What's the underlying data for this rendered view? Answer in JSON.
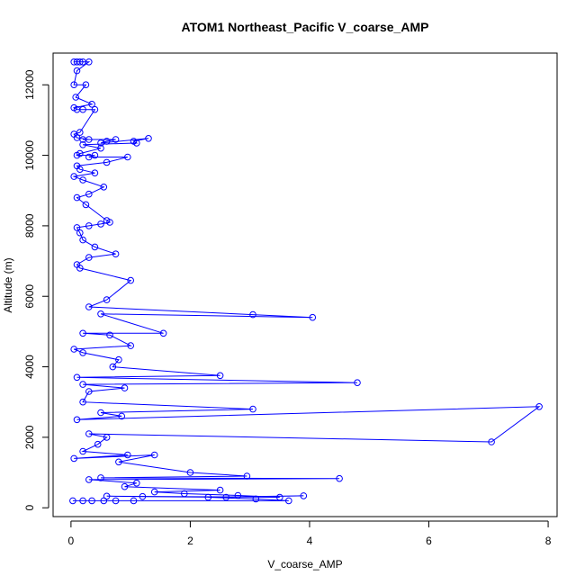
{
  "chart_data": {
    "type": "line",
    "title": "ATOM1 Northeast_Pacific V_coarse_AMP",
    "xlabel": "V_coarse_AMP",
    "ylabel": "Altitude (m)",
    "xlim": [
      -0.3,
      8.15
    ],
    "ylim": [
      -250,
      12900
    ],
    "xticks": [
      0,
      2,
      4,
      6,
      8
    ],
    "yticks": [
      0,
      2000,
      4000,
      6000,
      8000,
      10000,
      12000
    ],
    "grid": false,
    "marker": "open-circle",
    "color": "#0000ff",
    "series": [
      {
        "x": [
          0.05,
          0.1,
          0.15,
          0.2,
          0.3,
          0.1,
          0.05,
          0.25,
          0.08,
          0.35,
          0.05,
          0.1,
          0.2,
          0.4,
          0.15,
          0.05,
          0.1,
          0.3,
          0.2,
          0.75,
          0.6,
          0.5,
          1.3,
          1.05,
          1.1,
          0.2,
          0.5,
          0.15,
          0.1,
          0.4,
          0.3,
          0.95,
          0.6,
          0.1,
          0.15,
          0.4,
          0.05,
          0.2,
          0.55,
          0.3,
          0.1,
          0.25,
          0.6,
          0.65,
          0.5,
          0.3,
          0.1,
          0.15,
          0.2,
          0.4,
          0.75,
          0.3,
          0.1,
          0.15,
          1.0,
          0.6,
          0.3,
          3.05,
          4.05,
          0.5,
          1.55,
          0.2,
          0.65,
          1.0,
          0.05,
          0.2,
          0.8,
          0.7,
          2.5,
          0.1,
          4.8,
          0.2,
          0.9,
          0.3,
          0.2,
          3.05,
          0.5,
          0.85,
          0.1,
          7.85,
          7.05,
          0.3,
          0.6,
          0.45,
          0.2,
          0.95,
          0.05,
          1.4,
          0.8,
          2.0,
          2.95,
          0.5,
          4.5,
          0.3,
          1.1,
          0.9,
          2.5,
          1.4,
          1.9,
          2.8,
          3.5,
          0.6,
          1.2,
          2.6,
          3.9,
          2.3,
          3.1,
          3.65,
          0.55,
          1.05,
          0.75,
          0.2,
          0.35,
          0.03
        ],
        "y": [
          12650,
          12650,
          12650,
          12650,
          12650,
          12400,
          12000,
          12000,
          11650,
          11450,
          11350,
          11300,
          11300,
          11300,
          10650,
          10600,
          10500,
          10450,
          10450,
          10450,
          10400,
          10350,
          10480,
          10400,
          10350,
          10300,
          10200,
          10050,
          10000,
          10000,
          9950,
          9950,
          9800,
          9700,
          9600,
          9500,
          9400,
          9300,
          9100,
          8900,
          8800,
          8600,
          8150,
          8100,
          8050,
          8000,
          7950,
          7800,
          7600,
          7400,
          7200,
          7100,
          6900,
          6800,
          6450,
          5900,
          5700,
          5480,
          5400,
          5500,
          4950,
          4950,
          4900,
          4600,
          4500,
          4400,
          4200,
          4000,
          3750,
          3700,
          3550,
          3500,
          3400,
          3300,
          3000,
          2800,
          2700,
          2600,
          2500,
          2870,
          1870,
          2100,
          2000,
          1800,
          1600,
          1500,
          1400,
          1500,
          1300,
          1000,
          900,
          850,
          830,
          800,
          700,
          600,
          500,
          450,
          400,
          350,
          300,
          330,
          320,
          300,
          340,
          300,
          250,
          200,
          200,
          200,
          200,
          200,
          200,
          200
        ]
      }
    ]
  }
}
